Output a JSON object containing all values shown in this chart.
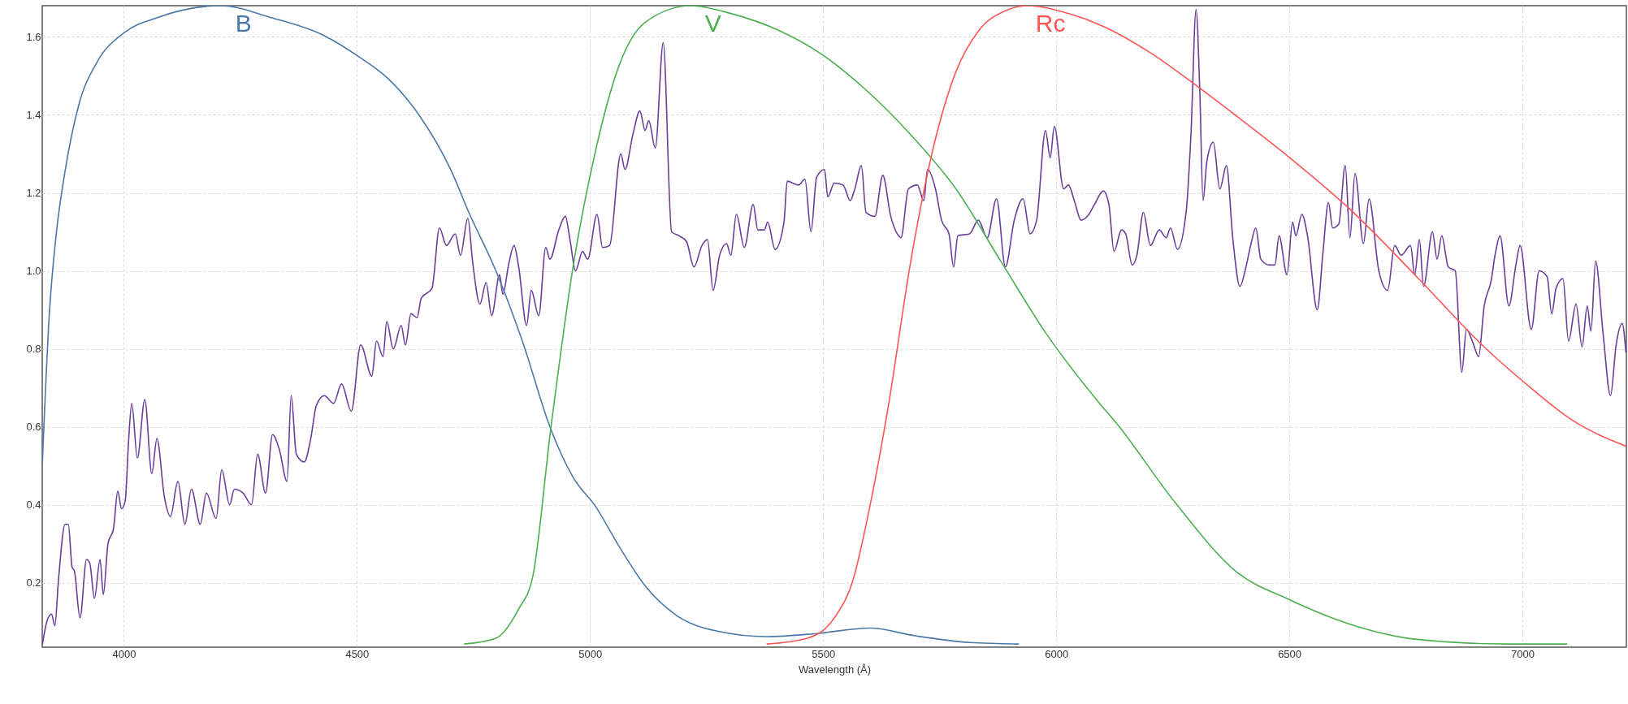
{
  "chart_data": {
    "type": "line",
    "xlabel": "Wavelength (Å)",
    "xlim": [
      3825,
      7223
    ],
    "ylim": [
      0.035,
      1.68
    ],
    "xticks": [
      4000,
      4500,
      5000,
      5500,
      6000,
      6500,
      7000
    ],
    "yticks": [
      0.2,
      0.4,
      0.6,
      0.8,
      {
        "value": 1,
        "label": "1.0"
      },
      1.2,
      1.4,
      1.6
    ],
    "grid": true,
    "series": [
      {
        "color": "#6a3d9a",
        "x": [
          3825,
          3836,
          3845,
          3852,
          3860,
          3874,
          3881,
          3889,
          3894,
          3906,
          3920,
          3927,
          3937,
          3949,
          3956,
          3966,
          3978,
          3987,
          3995,
          4003,
          4010,
          4017,
          4029,
          4045,
          4060,
          4071,
          4087,
          4100,
          4116,
          4131,
          4145,
          4164,
          4177,
          4198,
          4210,
          4227,
          4237,
          4256,
          4274,
          4287,
          4304,
          4319,
          4334,
          4350,
          4359,
          4370,
          4387,
          4401,
          4413,
          4430,
          4450,
          4467,
          4488,
          4508,
          4532,
          4542,
          4556,
          4564,
          4578,
          4595,
          4604,
          4616,
          4629,
          4638,
          4661,
          4677,
          4692,
          4711,
          4722,
          4738,
          4748,
          4764,
          4777,
          4789,
          4806,
          4813,
          4826,
          4837,
          4847,
          4864,
          4874,
          4890,
          4905,
          4914,
          4933,
          4947,
          4957,
          4969,
          4984,
          4995,
          5015,
          5027,
          5042,
          5066,
          5075,
          5092,
          5107,
          5118,
          5126,
          5140,
          5157,
          5175,
          5191,
          5207,
          5223,
          5240,
          5252,
          5264,
          5278,
          5293,
          5302,
          5314,
          5331,
          5350,
          5360,
          5374,
          5381,
          5397,
          5416,
          5423,
          5447,
          5461,
          5474,
          5486,
          5503,
          5510,
          5524,
          5543,
          5558,
          5568,
          5582,
          5592,
          5611,
          5628,
          5645,
          5659,
          5667,
          5683,
          5702,
          5716,
          5724,
          5741,
          5754,
          5770,
          5780,
          5789,
          5814,
          5833,
          5852,
          5872,
          5891,
          5910,
          5929,
          5944,
          5958,
          5977,
          5987,
          5996,
          6016,
          6026,
          6040,
          6053,
          6067,
          6082,
          6101,
          6113,
          6124,
          6140,
          6149,
          6163,
          6173,
          6187,
          6202,
          6221,
          6236,
          6245,
          6260,
          6279,
          6289,
          6300,
          6308,
          6315,
          6323,
          6337,
          6351,
          6365,
          6379,
          6394,
          6407,
          6418,
          6428,
          6439,
          6457,
          6469,
          6478,
          6495,
          6507,
          6514,
          6527,
          6539,
          6560,
          6572,
          6584,
          6593,
          6606,
          6620,
          6630,
          6641,
          6659,
          6671,
          6692,
          6711,
          6726,
          6740,
          6760,
          6769,
          6779,
          6788,
          6807,
          6817,
          6827,
          6841,
          6856,
          6870,
          6880,
          6894,
          6906,
          6918,
          6933,
          6942,
          6952,
          6971,
          6986,
          6995,
          7019,
          7036,
          7053,
          7063,
          7072,
          7087,
          7099,
          7115,
          7128,
          7139,
          7147,
          7157,
          7173,
          7189,
          7201,
          7214,
          7222
        ],
        "values": [
          0.04,
          0.105,
          0.12,
          0.09,
          0.21,
          0.35,
          0.35,
          0.24,
          0.23,
          0.11,
          0.26,
          0.25,
          0.16,
          0.26,
          0.17,
          0.3,
          0.34,
          0.435,
          0.39,
          0.41,
          0.56,
          0.66,
          0.52,
          0.67,
          0.48,
          0.57,
          0.42,
          0.37,
          0.46,
          0.35,
          0.44,
          0.35,
          0.43,
          0.365,
          0.49,
          0.4,
          0.44,
          0.43,
          0.4,
          0.53,
          0.43,
          0.58,
          0.54,
          0.46,
          0.68,
          0.53,
          0.51,
          0.57,
          0.655,
          0.68,
          0.66,
          0.71,
          0.64,
          0.81,
          0.73,
          0.82,
          0.78,
          0.87,
          0.8,
          0.86,
          0.81,
          0.89,
          0.88,
          0.93,
          0.955,
          1.11,
          1.065,
          1.095,
          1.04,
          1.135,
          1.025,
          0.915,
          0.97,
          0.885,
          0.99,
          0.94,
          1.02,
          1.065,
          1.01,
          0.86,
          0.95,
          0.885,
          1.06,
          1.03,
          1.105,
          1.14,
          1.08,
          1.0,
          1.05,
          1.03,
          1.145,
          1.06,
          1.065,
          1.3,
          1.26,
          1.35,
          1.41,
          1.36,
          1.385,
          1.315,
          1.585,
          1.1,
          1.09,
          1.075,
          1.01,
          1.065,
          1.08,
          0.95,
          1.04,
          1.07,
          1.04,
          1.145,
          1.06,
          1.17,
          1.105,
          1.105,
          1.125,
          1.055,
          1.125,
          1.23,
          1.22,
          1.235,
          1.1,
          1.24,
          1.26,
          1.19,
          1.225,
          1.22,
          1.18,
          1.21,
          1.27,
          1.15,
          1.14,
          1.245,
          1.14,
          1.095,
          1.085,
          1.21,
          1.22,
          1.18,
          1.26,
          1.21,
          1.13,
          1.095,
          1.01,
          1.09,
          1.095,
          1.13,
          1.085,
          1.185,
          1.01,
          1.13,
          1.185,
          1.095,
          1.13,
          1.36,
          1.29,
          1.37,
          1.21,
          1.22,
          1.175,
          1.13,
          1.14,
          1.17,
          1.205,
          1.17,
          1.05,
          1.105,
          1.095,
          1.015,
          1.04,
          1.15,
          1.065,
          1.105,
          1.085,
          1.11,
          1.055,
          1.155,
          1.35,
          1.67,
          1.46,
          1.18,
          1.28,
          1.33,
          1.21,
          1.27,
          1.08,
          0.96,
          1.01,
          1.07,
          1.11,
          1.03,
          1.015,
          1.015,
          1.09,
          0.99,
          1.125,
          1.09,
          1.145,
          1.09,
          0.9,
          1.045,
          1.175,
          1.11,
          1.12,
          1.27,
          1.085,
          1.25,
          1.07,
          1.185,
          1.0,
          0.95,
          1.065,
          1.04,
          1.065,
          0.99,
          1.08,
          0.96,
          1.1,
          1.03,
          1.09,
          1.01,
          1.0,
          0.74,
          0.85,
          0.815,
          0.78,
          0.91,
          0.975,
          1.045,
          1.09,
          0.91,
          1.015,
          1.065,
          0.85,
          1.0,
          0.985,
          0.89,
          0.955,
          0.98,
          0.82,
          0.915,
          0.805,
          0.91,
          0.845,
          1.025,
          0.84,
          0.68,
          0.81,
          0.865,
          0.79
        ]
      },
      {
        "name": "B",
        "color": "#4a78a8",
        "x": [
          3825,
          3840,
          3855,
          3874,
          3903,
          3942,
          4000,
          4073,
          4208,
          4314,
          4430,
          4508,
          4566,
          4633,
          4701,
          4740,
          4798,
          4856,
          4914,
          4964,
          5013,
          5061,
          5119,
          5186,
          5273,
          5379,
          5486,
          5601,
          5698,
          5814,
          5920
        ],
        "values": [
          0.5,
          0.886,
          1.094,
          1.256,
          1.424,
          1.534,
          1.61,
          1.65,
          1.68,
          1.65,
          1.603,
          1.546,
          1.494,
          1.4,
          1.26,
          1.15,
          1.0,
          0.816,
          0.6,
          0.47,
          0.394,
          0.296,
          0.191,
          0.116,
          0.076,
          0.062,
          0.07,
          0.084,
          0.064,
          0.047,
          0.043
        ]
      },
      {
        "name": "V",
        "color": "#4caf50",
        "x": [
          4730,
          4798,
          4847,
          4877,
          4916,
          4964,
          5013,
          5061,
          5119,
          5215,
          5302,
          5408,
          5495,
          5591,
          5688,
          5785,
          5881,
          5978,
          6089,
          6130,
          6255,
          6389,
          6500,
          6630,
          6774,
          6966,
          7096
        ],
        "values": [
          0.043,
          0.058,
          0.133,
          0.215,
          0.597,
          1.013,
          1.314,
          1.522,
          1.638,
          1.68,
          1.66,
          1.615,
          1.557,
          1.465,
          1.349,
          1.21,
          1.025,
          0.84,
          0.666,
          0.608,
          0.406,
          0.226,
          0.157,
          0.094,
          0.055,
          0.043,
          0.043
        ]
      },
      {
        "name": "Rc",
        "color": "#ff5555",
        "x": [
          5379,
          5466,
          5524,
          5563,
          5601,
          5640,
          5688,
          5736,
          5785,
          5833,
          5891,
          5939,
          6026,
          6101,
          6197,
          6293,
          6389,
          6500,
          6630,
          6774,
          6918,
          7000,
          7111,
          7223
        ],
        "values": [
          0.043,
          0.058,
          0.11,
          0.203,
          0.4,
          0.654,
          1.025,
          1.314,
          1.511,
          1.615,
          1.667,
          1.68,
          1.66,
          1.627,
          1.563,
          1.482,
          1.395,
          1.291,
          1.158,
          0.984,
          0.805,
          0.718,
          0.614,
          0.55
        ]
      }
    ]
  }
}
